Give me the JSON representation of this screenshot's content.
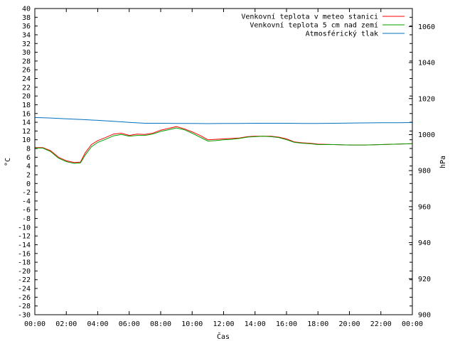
{
  "chart_data": {
    "type": "line",
    "xlabel": "Čas",
    "ylabel": "°C",
    "y2label": "hPa",
    "x_ticks": [
      "00:00",
      "02:00",
      "04:00",
      "06:00",
      "08:00",
      "10:00",
      "12:00",
      "14:00",
      "16:00",
      "18:00",
      "20:00",
      "22:00",
      "00:00"
    ],
    "xlim_hours": [
      0,
      24
    ],
    "ylim": [
      -30,
      40
    ],
    "y_tick_step": 2,
    "y2lim": [
      900,
      1070
    ],
    "y2_ticks": [
      900,
      920,
      940,
      960,
      980,
      1000,
      1020,
      1040,
      1060
    ],
    "grid": false,
    "legend_position": "top-right",
    "series": [
      {
        "name": "Venkovní teplota v meteo stanici",
        "axis": "left",
        "color": "#ff0000",
        "x": [
          0,
          0.5,
          1.0,
          1.5,
          2.0,
          2.5,
          2.9,
          3.2,
          3.6,
          4.0,
          4.5,
          5.0,
          5.5,
          6.0,
          6.5,
          7.0,
          7.5,
          8.0,
          8.5,
          9.0,
          9.5,
          10.0,
          10.5,
          11.0,
          11.5,
          12.0,
          12.5,
          13.0,
          13.5,
          14.0,
          14.5,
          15.0,
          15.5,
          16.0,
          16.5,
          17.0,
          17.5,
          18.0,
          19.0,
          20.0,
          21.0,
          22.0,
          23.0,
          24.0
        ],
        "values": [
          8.2,
          8.2,
          7.5,
          6.0,
          5.2,
          4.8,
          4.9,
          7.0,
          8.9,
          9.8,
          10.5,
          11.3,
          11.5,
          11.0,
          11.3,
          11.2,
          11.5,
          12.2,
          12.6,
          13.0,
          12.5,
          11.8,
          11.0,
          10.0,
          10.1,
          10.2,
          10.3,
          10.4,
          10.7,
          10.8,
          10.8,
          10.8,
          10.6,
          10.2,
          9.5,
          9.3,
          9.2,
          9.0,
          8.9,
          8.8,
          8.8,
          8.9,
          9.0,
          9.1
        ]
      },
      {
        "name": "Venkovní teplota 5 cm nad zemí",
        "axis": "left",
        "color": "#00a000",
        "x": [
          0,
          0.5,
          1.0,
          1.5,
          2.0,
          2.5,
          2.9,
          3.2,
          3.6,
          4.0,
          4.5,
          5.0,
          5.5,
          6.0,
          6.5,
          7.0,
          7.5,
          8.0,
          8.5,
          9.0,
          9.5,
          10.0,
          10.5,
          11.0,
          11.5,
          12.0,
          12.5,
          13.0,
          13.5,
          14.0,
          14.5,
          15.0,
          15.5,
          16.0,
          16.5,
          17.0,
          17.5,
          18.0,
          19.0,
          20.0,
          21.0,
          22.0,
          23.0,
          24.0
        ],
        "values": [
          8.1,
          8.1,
          7.3,
          5.8,
          5.0,
          4.6,
          4.7,
          6.5,
          8.4,
          9.4,
          10.1,
          10.9,
          11.2,
          10.8,
          11.0,
          11.0,
          11.3,
          11.9,
          12.3,
          12.7,
          12.3,
          11.5,
          10.6,
          9.7,
          9.8,
          10.0,
          10.1,
          10.3,
          10.6,
          10.7,
          10.8,
          10.7,
          10.5,
          10.0,
          9.4,
          9.2,
          9.1,
          8.9,
          8.9,
          8.8,
          8.8,
          8.9,
          9.0,
          9.1
        ]
      },
      {
        "name": "Atmosférický tlak",
        "axis": "right",
        "color": "#0070c0",
        "x": [
          0,
          1,
          2,
          3,
          4,
          5,
          6,
          7,
          8,
          9,
          10,
          11,
          12,
          13,
          14,
          15,
          16,
          17,
          18,
          19,
          20,
          21,
          22,
          23,
          24
        ],
        "values": [
          1009.5,
          1009.2,
          1008.8,
          1008.4,
          1007.9,
          1007.4,
          1006.8,
          1006.3,
          1006.3,
          1006.2,
          1006.2,
          1006.1,
          1006.2,
          1006.2,
          1006.3,
          1006.3,
          1006.3,
          1006.2,
          1006.2,
          1006.3,
          1006.4,
          1006.5,
          1006.6,
          1006.6,
          1006.7
        ]
      }
    ]
  }
}
